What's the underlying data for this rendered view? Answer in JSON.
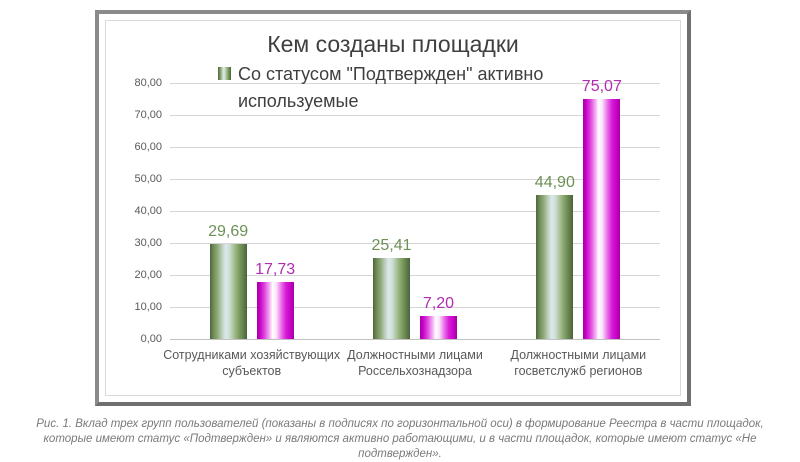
{
  "figure": {
    "caption": "Рис. 1. Вклад трех групп пользователей (показаны в подписях по горизонтальной оси) в формирование Реестра в части площадок, которые имеют статус «Подтвержден» и являются активно работающими, и в части площадок, которые имеют статус «Не подтвержден»."
  },
  "chart_data": {
    "type": "bar",
    "title": "Кем созданы площадки",
    "legend_entries": [
      "Со статусом \"Подтвержден\" активно используемые"
    ],
    "legend_position": "top",
    "grid": true,
    "ylim": [
      0,
      80
    ],
    "yticks": [
      "0,00",
      "10,00",
      "20,00",
      "30,00",
      "40,00",
      "50,00",
      "60,00",
      "70,00",
      "80,00"
    ],
    "categories": [
      "Сотрудниками хозяйствующих\nсубъектов",
      "Должностными лицами\nРоссельхознадзора",
      "Должностными лицами\nгосветслужб регионов"
    ],
    "series": [
      {
        "name": "Со статусом \"Подтвержден\" активно используемые",
        "color": "#6f9554",
        "label_color": "#6d9156",
        "values": [
          29.69,
          25.41,
          44.9
        ],
        "value_labels": [
          "29,69",
          "25,41",
          "44,90"
        ]
      },
      {
        "color": "#cc00cc",
        "label_color": "#b02cb0",
        "values": [
          17.73,
          7.2,
          75.07
        ],
        "value_labels": [
          "17,73",
          "7,20",
          "75,07"
        ]
      }
    ]
  }
}
